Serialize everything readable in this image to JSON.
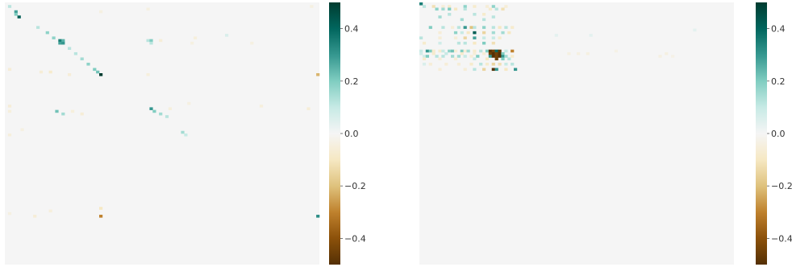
{
  "chart_data": [
    {
      "type": "heatmap",
      "title": "",
      "xlabel": "",
      "ylabel": "",
      "grid": false,
      "colormap": "BrBG",
      "vmin": -0.5,
      "vmax": 0.5,
      "colorbar": {
        "ticks": [
          0.4,
          0.2,
          0.0,
          -0.2,
          -0.4
        ],
        "tick_labels": [
          "0.4",
          "0.2",
          "0.0",
          "−0.2",
          "−0.4"
        ]
      },
      "grid_size": [
        100,
        100
      ],
      "background_value": 0.0,
      "cells": [
        [
          1,
          1,
          0.12
        ],
        [
          3,
          3,
          0.28
        ],
        [
          4,
          3,
          0.2
        ],
        [
          5,
          4,
          0.42
        ],
        [
          9,
          10,
          0.12
        ],
        [
          11,
          13,
          0.18
        ],
        [
          13,
          15,
          0.18
        ],
        [
          14,
          17,
          0.35
        ],
        [
          15,
          17,
          0.28
        ],
        [
          14,
          18,
          0.25
        ],
        [
          15,
          18,
          0.3
        ],
        [
          17,
          20,
          0.12
        ],
        [
          19,
          22,
          0.12
        ],
        [
          21,
          24,
          0.15
        ],
        [
          23,
          26,
          0.18
        ],
        [
          25,
          28,
          0.2
        ],
        [
          26,
          29,
          0.22
        ],
        [
          27,
          30,
          0.5
        ],
        [
          27,
          99,
          -0.22
        ],
        [
          25,
          1,
          -0.06
        ],
        [
          26,
          11,
          -0.06
        ],
        [
          26,
          14,
          -0.08
        ],
        [
          27,
          20,
          -0.06
        ],
        [
          27,
          45,
          -0.05
        ],
        [
          14,
          45,
          0.12
        ],
        [
          14,
          46,
          0.2
        ],
        [
          15,
          46,
          0.12
        ],
        [
          14,
          49,
          -0.06
        ],
        [
          41,
          16,
          0.22
        ],
        [
          42,
          18,
          0.15
        ],
        [
          41,
          21,
          -0.05
        ],
        [
          42,
          24,
          -0.06
        ],
        [
          40,
          46,
          0.3
        ],
        [
          41,
          47,
          0.2
        ],
        [
          42,
          49,
          0.15
        ],
        [
          43,
          51,
          0.12
        ],
        [
          40,
          52,
          -0.05
        ],
        [
          39,
          1,
          -0.06
        ],
        [
          41,
          1,
          -0.05
        ],
        [
          40,
          96,
          -0.06
        ],
        [
          39,
          81,
          -0.05
        ],
        [
          49,
          56,
          0.15
        ],
        [
          50,
          57,
          0.1
        ],
        [
          48,
          5,
          -0.04
        ],
        [
          50,
          1,
          -0.05
        ],
        [
          78,
          30,
          -0.1
        ],
        [
          81,
          30,
          -0.3
        ],
        [
          81,
          99,
          0.32
        ],
        [
          81,
          9,
          -0.06
        ],
        [
          80,
          1,
          -0.04
        ],
        [
          79,
          14,
          -0.05
        ],
        [
          3,
          30,
          -0.04
        ],
        [
          2,
          45,
          -0.04
        ],
        [
          1,
          97,
          -0.04
        ],
        [
          13,
          60,
          -0.05
        ],
        [
          15,
          59,
          -0.04
        ],
        [
          12,
          70,
          0.06
        ],
        [
          15,
          78,
          -0.04
        ],
        [
          38,
          58,
          -0.04
        ]
      ]
    },
    {
      "type": "heatmap",
      "title": "",
      "xlabel": "",
      "ylabel": "",
      "grid": false,
      "colormap": "BrBG",
      "vmin": -0.5,
      "vmax": 0.5,
      "colorbar": {
        "ticks": [
          0.4,
          0.2,
          0.0,
          -0.2,
          -0.4
        ],
        "tick_labels": [
          "0.4",
          "0.2",
          "0.0",
          "−0.2",
          "−0.4"
        ]
      },
      "grid_size": [
        100,
        100
      ],
      "background_value": 0.0,
      "cells": [
        [
          0,
          0,
          0.35
        ],
        [
          1,
          1,
          0.12
        ],
        [
          1,
          4,
          -0.12
        ],
        [
          2,
          5,
          0.18
        ],
        [
          1,
          7,
          -0.06
        ],
        [
          1,
          9,
          -0.08
        ],
        [
          1,
          14,
          0.18
        ],
        [
          1,
          17,
          -0.08
        ],
        [
          1,
          21,
          -0.06
        ],
        [
          1,
          23,
          0.18
        ],
        [
          1,
          27,
          -0.06
        ],
        [
          2,
          7,
          0.15
        ],
        [
          2,
          9,
          0.2
        ],
        [
          2,
          11,
          -0.1
        ],
        [
          2,
          14,
          0.12
        ],
        [
          2,
          22,
          -0.08
        ],
        [
          2,
          24,
          0.12
        ],
        [
          2,
          26,
          -0.12
        ],
        [
          4,
          9,
          0.12
        ],
        [
          4,
          17,
          0.12
        ],
        [
          4,
          20,
          -0.08
        ],
        [
          5,
          6,
          0.15
        ],
        [
          5,
          23,
          0.12
        ],
        [
          6,
          13,
          0.15
        ],
        [
          6,
          20,
          0.12
        ],
        [
          9,
          3,
          0.2
        ],
        [
          9,
          7,
          0.12
        ],
        [
          9,
          10,
          -0.06
        ],
        [
          9,
          12,
          0.12
        ],
        [
          9,
          14,
          0.3
        ],
        [
          9,
          16,
          -0.2
        ],
        [
          9,
          17,
          0.12
        ],
        [
          9,
          20,
          0.18
        ],
        [
          9,
          23,
          0.12
        ],
        [
          9,
          25,
          -0.1
        ],
        [
          9,
          27,
          0.12
        ],
        [
          9,
          29,
          -0.08
        ],
        [
          11,
          6,
          -0.06
        ],
        [
          11,
          11,
          0.18
        ],
        [
          11,
          13,
          0.1
        ],
        [
          11,
          15,
          -0.1
        ],
        [
          11,
          17,
          0.42
        ],
        [
          11,
          20,
          -0.15
        ],
        [
          11,
          23,
          0.15
        ],
        [
          11,
          26,
          0.15
        ],
        [
          11,
          28,
          -0.1
        ],
        [
          13,
          0,
          0.12
        ],
        [
          13,
          6,
          -0.06
        ],
        [
          13,
          11,
          -0.06
        ],
        [
          13,
          14,
          -0.15
        ],
        [
          13,
          17,
          0.28
        ],
        [
          13,
          20,
          0.1
        ],
        [
          13,
          23,
          0.1
        ],
        [
          13,
          25,
          -0.08
        ],
        [
          15,
          1,
          -0.08
        ],
        [
          15,
          6,
          0.08
        ],
        [
          15,
          12,
          0.12
        ],
        [
          15,
          14,
          0.12
        ],
        [
          15,
          17,
          -0.1
        ],
        [
          15,
          20,
          0.2
        ],
        [
          15,
          23,
          -0.12
        ],
        [
          18,
          0,
          0.1
        ],
        [
          18,
          2,
          0.3
        ],
        [
          18,
          3,
          0.2
        ],
        [
          18,
          4,
          -0.08
        ],
        [
          18,
          6,
          -0.08
        ],
        [
          18,
          7,
          0.1
        ],
        [
          18,
          9,
          0.18
        ],
        [
          18,
          10,
          0.22
        ],
        [
          18,
          11,
          -0.06
        ],
        [
          18,
          13,
          0.2
        ],
        [
          18,
          14,
          -0.06
        ],
        [
          18,
          15,
          0.15
        ],
        [
          18,
          17,
          -0.08
        ],
        [
          18,
          19,
          0.12
        ],
        [
          18,
          21,
          0.2
        ],
        [
          18,
          22,
          -0.5
        ],
        [
          18,
          23,
          -0.45
        ],
        [
          18,
          24,
          0.4
        ],
        [
          18,
          25,
          -0.48
        ],
        [
          18,
          27,
          0.1
        ],
        [
          18,
          29,
          -0.3
        ],
        [
          19,
          0,
          0.08
        ],
        [
          19,
          4,
          -0.08
        ],
        [
          19,
          8,
          0.1
        ],
        [
          19,
          13,
          -0.08
        ],
        [
          19,
          17,
          -0.06
        ],
        [
          19,
          20,
          -0.06
        ],
        [
          19,
          22,
          -0.45
        ],
        [
          19,
          23,
          -0.5
        ],
        [
          19,
          24,
          -0.45
        ],
        [
          19,
          25,
          -0.5
        ],
        [
          19,
          26,
          0.2
        ],
        [
          20,
          1,
          0.08
        ],
        [
          20,
          2,
          0.2
        ],
        [
          20,
          5,
          0.12
        ],
        [
          20,
          7,
          0.12
        ],
        [
          20,
          10,
          0.15
        ],
        [
          20,
          12,
          0.15
        ],
        [
          20,
          14,
          0.1
        ],
        [
          20,
          16,
          -0.06
        ],
        [
          20,
          18,
          0.2
        ],
        [
          20,
          22,
          0.3
        ],
        [
          20,
          23,
          -0.5
        ],
        [
          20,
          24,
          -0.45
        ],
        [
          20,
          25,
          -0.5
        ],
        [
          20,
          26,
          0.3
        ],
        [
          20,
          27,
          0.15
        ],
        [
          20,
          29,
          -0.08
        ],
        [
          21,
          1,
          -0.08
        ],
        [
          21,
          6,
          -0.06
        ],
        [
          21,
          11,
          -0.06
        ],
        [
          21,
          17,
          0.1
        ],
        [
          21,
          21,
          -0.1
        ],
        [
          21,
          24,
          -0.45
        ],
        [
          21,
          26,
          0.2
        ],
        [
          21,
          28,
          0.12
        ],
        [
          23,
          1,
          0.06
        ],
        [
          23,
          3,
          -0.06
        ],
        [
          23,
          8,
          -0.06
        ],
        [
          23,
          12,
          -0.06
        ],
        [
          23,
          16,
          -0.08
        ],
        [
          23,
          19,
          0.12
        ],
        [
          23,
          21,
          -0.08
        ],
        [
          23,
          23,
          -0.15
        ],
        [
          23,
          25,
          -0.12
        ],
        [
          23,
          27,
          0.1
        ],
        [
          23,
          29,
          0.12
        ],
        [
          25,
          6,
          -0.06
        ],
        [
          25,
          14,
          -0.06
        ],
        [
          25,
          17,
          0.12
        ],
        [
          25,
          20,
          -0.15
        ],
        [
          25,
          23,
          -0.5
        ],
        [
          25,
          24,
          0.3
        ],
        [
          25,
          27,
          -0.1
        ],
        [
          25,
          30,
          0.3
        ],
        [
          19,
          47,
          -0.04
        ],
        [
          19,
          50,
          -0.04
        ],
        [
          19,
          53,
          -0.04
        ],
        [
          18,
          62,
          -0.03
        ],
        [
          20,
          76,
          -0.04
        ],
        [
          19,
          78,
          -0.04
        ],
        [
          20,
          80,
          -0.03
        ],
        [
          12,
          43,
          0.04
        ],
        [
          12,
          54,
          0.04
        ],
        [
          10,
          87,
          0.04
        ]
      ]
    }
  ]
}
